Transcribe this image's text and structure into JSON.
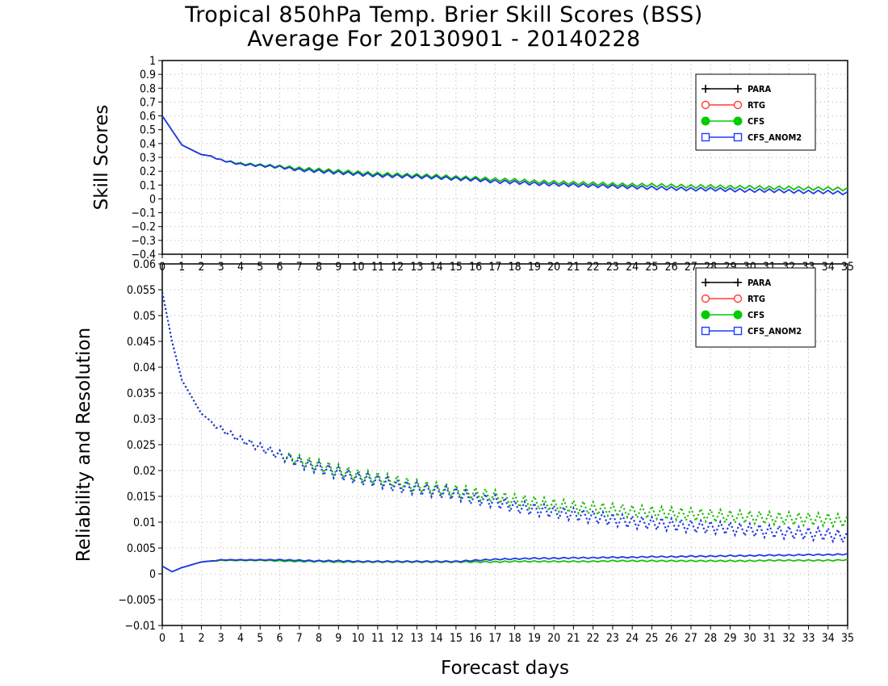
{
  "title_line1": "Tropical 850hPa Temp. Brier Skill Scores (BSS)",
  "title_line2": "Average For 20130901 - 20140228",
  "colors": {
    "PARA": "#000000",
    "RTG": "#ff3b3b",
    "CFS": "#00cc00",
    "CFS_ANOM2": "#1e3cff"
  },
  "chart_data": [
    {
      "type": "line",
      "ylabel": "Skill Scores",
      "xlabel": "",
      "xlim": [
        0,
        35
      ],
      "ylim": [
        -0.4,
        1
      ],
      "x_ticks": [
        "0",
        "1",
        "2",
        "3",
        "4",
        "5",
        "6",
        "7",
        "8",
        "9",
        "10",
        "11",
        "12",
        "13",
        "14",
        "15",
        "16",
        "17",
        "18",
        "19",
        "20",
        "21",
        "22",
        "23",
        "24",
        "25",
        "26",
        "27",
        "28",
        "29",
        "30",
        "31",
        "32",
        "33",
        "34",
        "35"
      ],
      "y_ticks": [
        "-0.4",
        "-0.3",
        "-0.2",
        "-0.1",
        "0",
        "0.1",
        "0.2",
        "0.3",
        "0.4",
        "0.5",
        "0.6",
        "0.7",
        "0.8",
        "0.9",
        "1"
      ],
      "grid": true,
      "legend_position": "top-right",
      "series": [
        {
          "name": "PARA",
          "x": [
            0,
            1,
            2,
            2.5,
            3,
            4,
            5,
            6,
            7,
            8,
            9,
            10,
            11,
            12,
            13,
            14,
            15,
            16,
            17,
            18,
            19,
            20,
            21,
            22,
            23,
            24,
            25,
            26,
            27,
            28,
            29,
            30,
            31,
            32,
            33,
            34,
            35
          ],
          "values": [
            0.6,
            0.39,
            0.32,
            0.31,
            0.28,
            0.25,
            0.24,
            0.23,
            0.21,
            0.2,
            0.19,
            0.18,
            0.17,
            0.165,
            0.16,
            0.155,
            0.145,
            0.14,
            0.125,
            0.12,
            0.11,
            0.105,
            0.1,
            0.095,
            0.09,
            0.085,
            0.08,
            0.075,
            0.07,
            0.07,
            0.065,
            0.06,
            0.06,
            0.055,
            0.05,
            0.05,
            0.04
          ]
        },
        {
          "name": "RTG",
          "x": [
            0,
            1,
            2,
            2.5,
            3,
            4,
            5,
            6,
            7,
            8,
            9,
            10,
            11,
            12,
            13,
            14,
            15,
            16,
            17,
            18,
            19,
            20,
            21,
            22,
            23,
            24,
            25,
            26,
            27,
            28,
            29,
            30,
            31,
            32,
            33,
            34,
            35
          ],
          "values": [
            0.6,
            0.39,
            0.32,
            0.31,
            0.28,
            0.255,
            0.245,
            0.235,
            0.22,
            0.21,
            0.2,
            0.19,
            0.18,
            0.175,
            0.17,
            0.165,
            0.155,
            0.15,
            0.14,
            0.135,
            0.125,
            0.12,
            0.115,
            0.11,
            0.105,
            0.1,
            0.1,
            0.095,
            0.09,
            0.09,
            0.085,
            0.085,
            0.08,
            0.08,
            0.075,
            0.075,
            0.07
          ]
        },
        {
          "name": "CFS",
          "x": [
            0,
            1,
            2,
            2.5,
            3,
            4,
            5,
            6,
            7,
            8,
            9,
            10,
            11,
            12,
            13,
            14,
            15,
            16,
            17,
            18,
            19,
            20,
            21,
            22,
            23,
            24,
            25,
            26,
            27,
            28,
            29,
            30,
            31,
            32,
            33,
            34,
            35
          ],
          "values": [
            0.6,
            0.39,
            0.32,
            0.31,
            0.28,
            0.255,
            0.245,
            0.235,
            0.22,
            0.21,
            0.2,
            0.19,
            0.18,
            0.175,
            0.17,
            0.165,
            0.155,
            0.15,
            0.14,
            0.135,
            0.125,
            0.12,
            0.115,
            0.11,
            0.105,
            0.1,
            0.1,
            0.095,
            0.09,
            0.09,
            0.085,
            0.085,
            0.08,
            0.08,
            0.075,
            0.075,
            0.07
          ]
        },
        {
          "name": "CFS_ANOM2",
          "x": [
            0,
            1,
            2,
            2.5,
            3,
            4,
            5,
            6,
            7,
            8,
            9,
            10,
            11,
            12,
            13,
            14,
            15,
            16,
            17,
            18,
            19,
            20,
            21,
            22,
            23,
            24,
            25,
            26,
            27,
            28,
            29,
            30,
            31,
            32,
            33,
            34,
            35
          ],
          "values": [
            0.6,
            0.39,
            0.32,
            0.31,
            0.28,
            0.25,
            0.24,
            0.23,
            0.21,
            0.2,
            0.19,
            0.18,
            0.17,
            0.165,
            0.16,
            0.155,
            0.145,
            0.14,
            0.125,
            0.12,
            0.11,
            0.105,
            0.1,
            0.095,
            0.09,
            0.085,
            0.08,
            0.075,
            0.07,
            0.07,
            0.065,
            0.06,
            0.06,
            0.055,
            0.05,
            0.05,
            0.04
          ]
        }
      ]
    },
    {
      "type": "line",
      "ylabel": "Reliability and Resolution",
      "xlabel": "Forecast days",
      "xlim": [
        0,
        35
      ],
      "ylim": [
        -0.01,
        0.06
      ],
      "x_ticks": [
        "0",
        "1",
        "2",
        "3",
        "4",
        "5",
        "6",
        "7",
        "8",
        "9",
        "10",
        "11",
        "12",
        "13",
        "14",
        "15",
        "16",
        "17",
        "18",
        "19",
        "20",
        "21",
        "22",
        "23",
        "24",
        "25",
        "26",
        "27",
        "28",
        "29",
        "30",
        "31",
        "32",
        "33",
        "34",
        "35"
      ],
      "y_ticks": [
        "-0.01",
        "-0.005",
        "0",
        "0.005",
        "0.01",
        "0.015",
        "0.02",
        "0.025",
        "0.03",
        "0.035",
        "0.04",
        "0.045",
        "0.05",
        "0.055",
        "0.06"
      ],
      "grid": true,
      "legend_position": "top-right",
      "series": [
        {
          "name": "PARA",
          "x": [
            0,
            0.5,
            1,
            2,
            3,
            4,
            5,
            6,
            7,
            8,
            9,
            10,
            11,
            12,
            13,
            14,
            15,
            16,
            17,
            18,
            19,
            20,
            21,
            22,
            23,
            24,
            25,
            26,
            27,
            28,
            29,
            30,
            31,
            32,
            33,
            34,
            35
          ],
          "values": [
            0.0015,
            0.0004,
            0.0012,
            0.0023,
            0.0027,
            0.0027,
            0.0027,
            0.0027,
            0.0026,
            0.0025,
            0.0025,
            0.0024,
            0.0024,
            0.0024,
            0.0024,
            0.0024,
            0.0024,
            0.0026,
            0.0028,
            0.0029,
            0.003,
            0.003,
            0.0031,
            0.0031,
            0.0032,
            0.0032,
            0.0033,
            0.0033,
            0.0034,
            0.0034,
            0.0035,
            0.0035,
            0.0036,
            0.0036,
            0.0037,
            0.0037,
            0.0038
          ],
          "dotted_values": [
            0.0545,
            0.045,
            0.0375,
            0.031,
            0.028,
            0.026,
            0.0245,
            0.023,
            0.0215,
            0.0205,
            0.0195,
            0.0185,
            0.018,
            0.017,
            0.0165,
            0.016,
            0.0155,
            0.0145,
            0.014,
            0.013,
            0.0125,
            0.012,
            0.0115,
            0.011,
            0.0105,
            0.01,
            0.0098,
            0.0095,
            0.0092,
            0.009,
            0.0088,
            0.0085,
            0.0082,
            0.008,
            0.0078,
            0.0076,
            0.0072
          ]
        },
        {
          "name": "RTG",
          "x": [
            0,
            0.5,
            1,
            2,
            3,
            4,
            5,
            6,
            7,
            8,
            9,
            10,
            11,
            12,
            13,
            14,
            15,
            16,
            17,
            18,
            19,
            20,
            21,
            22,
            23,
            24,
            25,
            26,
            27,
            28,
            29,
            30,
            31,
            32,
            33,
            34,
            35
          ],
          "values": [
            0.0015,
            0.0004,
            0.0012,
            0.0023,
            0.0026,
            0.0026,
            0.0026,
            0.0025,
            0.0024,
            0.0024,
            0.0023,
            0.0023,
            0.0023,
            0.0023,
            0.0023,
            0.0023,
            0.0023,
            0.0023,
            0.0023,
            0.0024,
            0.0024,
            0.0024,
            0.0024,
            0.0024,
            0.0025,
            0.0025,
            0.0025,
            0.0025,
            0.0025,
            0.0025,
            0.0025,
            0.0025,
            0.0026,
            0.0026,
            0.0026,
            0.0026,
            0.0027
          ],
          "dotted_values": [
            0.0545,
            0.045,
            0.0375,
            0.031,
            0.028,
            0.026,
            0.0245,
            0.023,
            0.022,
            0.021,
            0.02,
            0.019,
            0.0185,
            0.0178,
            0.017,
            0.0165,
            0.016,
            0.0155,
            0.015,
            0.0142,
            0.0138,
            0.0133,
            0.013,
            0.0127,
            0.0124,
            0.0121,
            0.0119,
            0.0117,
            0.0115,
            0.0113,
            0.0111,
            0.011,
            0.0108,
            0.0107,
            0.0106,
            0.0105,
            0.0102
          ]
        },
        {
          "name": "CFS",
          "x": [
            0,
            0.5,
            1,
            2,
            3,
            4,
            5,
            6,
            7,
            8,
            9,
            10,
            11,
            12,
            13,
            14,
            15,
            16,
            17,
            18,
            19,
            20,
            21,
            22,
            23,
            24,
            25,
            26,
            27,
            28,
            29,
            30,
            31,
            32,
            33,
            34,
            35
          ],
          "values": [
            0.0015,
            0.0004,
            0.0012,
            0.0023,
            0.0026,
            0.0026,
            0.0026,
            0.0025,
            0.0024,
            0.0024,
            0.0023,
            0.0023,
            0.0023,
            0.0023,
            0.0023,
            0.0023,
            0.0023,
            0.0023,
            0.0023,
            0.0024,
            0.0024,
            0.0024,
            0.0024,
            0.0024,
            0.0025,
            0.0025,
            0.0025,
            0.0025,
            0.0025,
            0.0025,
            0.0025,
            0.0025,
            0.0026,
            0.0026,
            0.0026,
            0.0026,
            0.0027
          ],
          "dotted_values": [
            0.0545,
            0.045,
            0.0375,
            0.031,
            0.028,
            0.026,
            0.0245,
            0.023,
            0.022,
            0.021,
            0.02,
            0.019,
            0.0185,
            0.0178,
            0.017,
            0.0165,
            0.016,
            0.0155,
            0.015,
            0.0142,
            0.0138,
            0.0133,
            0.013,
            0.0127,
            0.0124,
            0.0121,
            0.0119,
            0.0117,
            0.0115,
            0.0113,
            0.0111,
            0.011,
            0.0108,
            0.0107,
            0.0106,
            0.0105,
            0.0102
          ]
        },
        {
          "name": "CFS_ANOM2",
          "x": [
            0,
            0.5,
            1,
            2,
            3,
            4,
            5,
            6,
            7,
            8,
            9,
            10,
            11,
            12,
            13,
            14,
            15,
            16,
            17,
            18,
            19,
            20,
            21,
            22,
            23,
            24,
            25,
            26,
            27,
            28,
            29,
            30,
            31,
            32,
            33,
            34,
            35
          ],
          "values": [
            0.0015,
            0.0004,
            0.0012,
            0.0023,
            0.0027,
            0.0027,
            0.0027,
            0.0027,
            0.0026,
            0.0025,
            0.0025,
            0.0024,
            0.0024,
            0.0024,
            0.0024,
            0.0024,
            0.0024,
            0.0026,
            0.0028,
            0.0029,
            0.003,
            0.003,
            0.0031,
            0.0031,
            0.0032,
            0.0032,
            0.0033,
            0.0033,
            0.0034,
            0.0034,
            0.0035,
            0.0035,
            0.0036,
            0.0036,
            0.0037,
            0.0037,
            0.0038
          ],
          "dotted_values": [
            0.0545,
            0.045,
            0.0375,
            0.031,
            0.028,
            0.026,
            0.0245,
            0.023,
            0.0215,
            0.0205,
            0.0195,
            0.0185,
            0.018,
            0.017,
            0.0165,
            0.016,
            0.0155,
            0.0145,
            0.014,
            0.013,
            0.0125,
            0.012,
            0.0115,
            0.011,
            0.0105,
            0.01,
            0.0098,
            0.0095,
            0.0092,
            0.009,
            0.0088,
            0.0085,
            0.0082,
            0.008,
            0.0078,
            0.0076,
            0.0072
          ]
        }
      ]
    }
  ]
}
